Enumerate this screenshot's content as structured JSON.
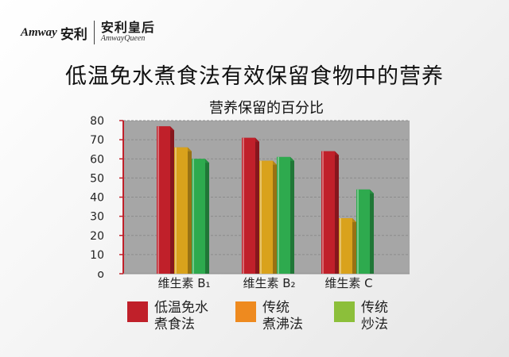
{
  "logo": {
    "brand_en": "Amway",
    "brand_cn": "安利",
    "queen_cn": "安利皇后",
    "queen_en": "AmwayQueen"
  },
  "title": "低温免水煮食法有效保留食物中的营养",
  "colors": {
    "low_temp": "#c0202a",
    "boil": "#d9a21c",
    "stir_fry": "#2eaa4e",
    "legend_boil": "#ee8a1f",
    "legend_stir_fry": "#8cbf3a",
    "plot_bg": "#a6a6a6",
    "axis": "#c0202a"
  },
  "legend": [
    {
      "label": "低温免水\n煮食法",
      "color_key": "low_temp"
    },
    {
      "label": "传统\n煮沸法",
      "color_key": "legend_boil"
    },
    {
      "label": "传统\n炒法",
      "color_key": "legend_stir_fry"
    }
  ],
  "chart_data": {
    "type": "bar",
    "title": "营养保留的百分比",
    "categories": [
      "维生素 B₁",
      "维生素 B₂",
      "维生素 C"
    ],
    "series": [
      {
        "name": "低温免水煮食法",
        "values": [
          77,
          71,
          64
        ]
      },
      {
        "name": "传统煮沸法",
        "values": [
          66,
          59,
          29
        ]
      },
      {
        "name": "传统炒法",
        "values": [
          60,
          61,
          44
        ]
      }
    ],
    "ylim": [
      0,
      80
    ],
    "yticks": [
      "o",
      "10",
      "20",
      "30",
      "40",
      "50",
      "60",
      "70",
      "80"
    ],
    "grid": true,
    "legend_position": "bottom"
  }
}
